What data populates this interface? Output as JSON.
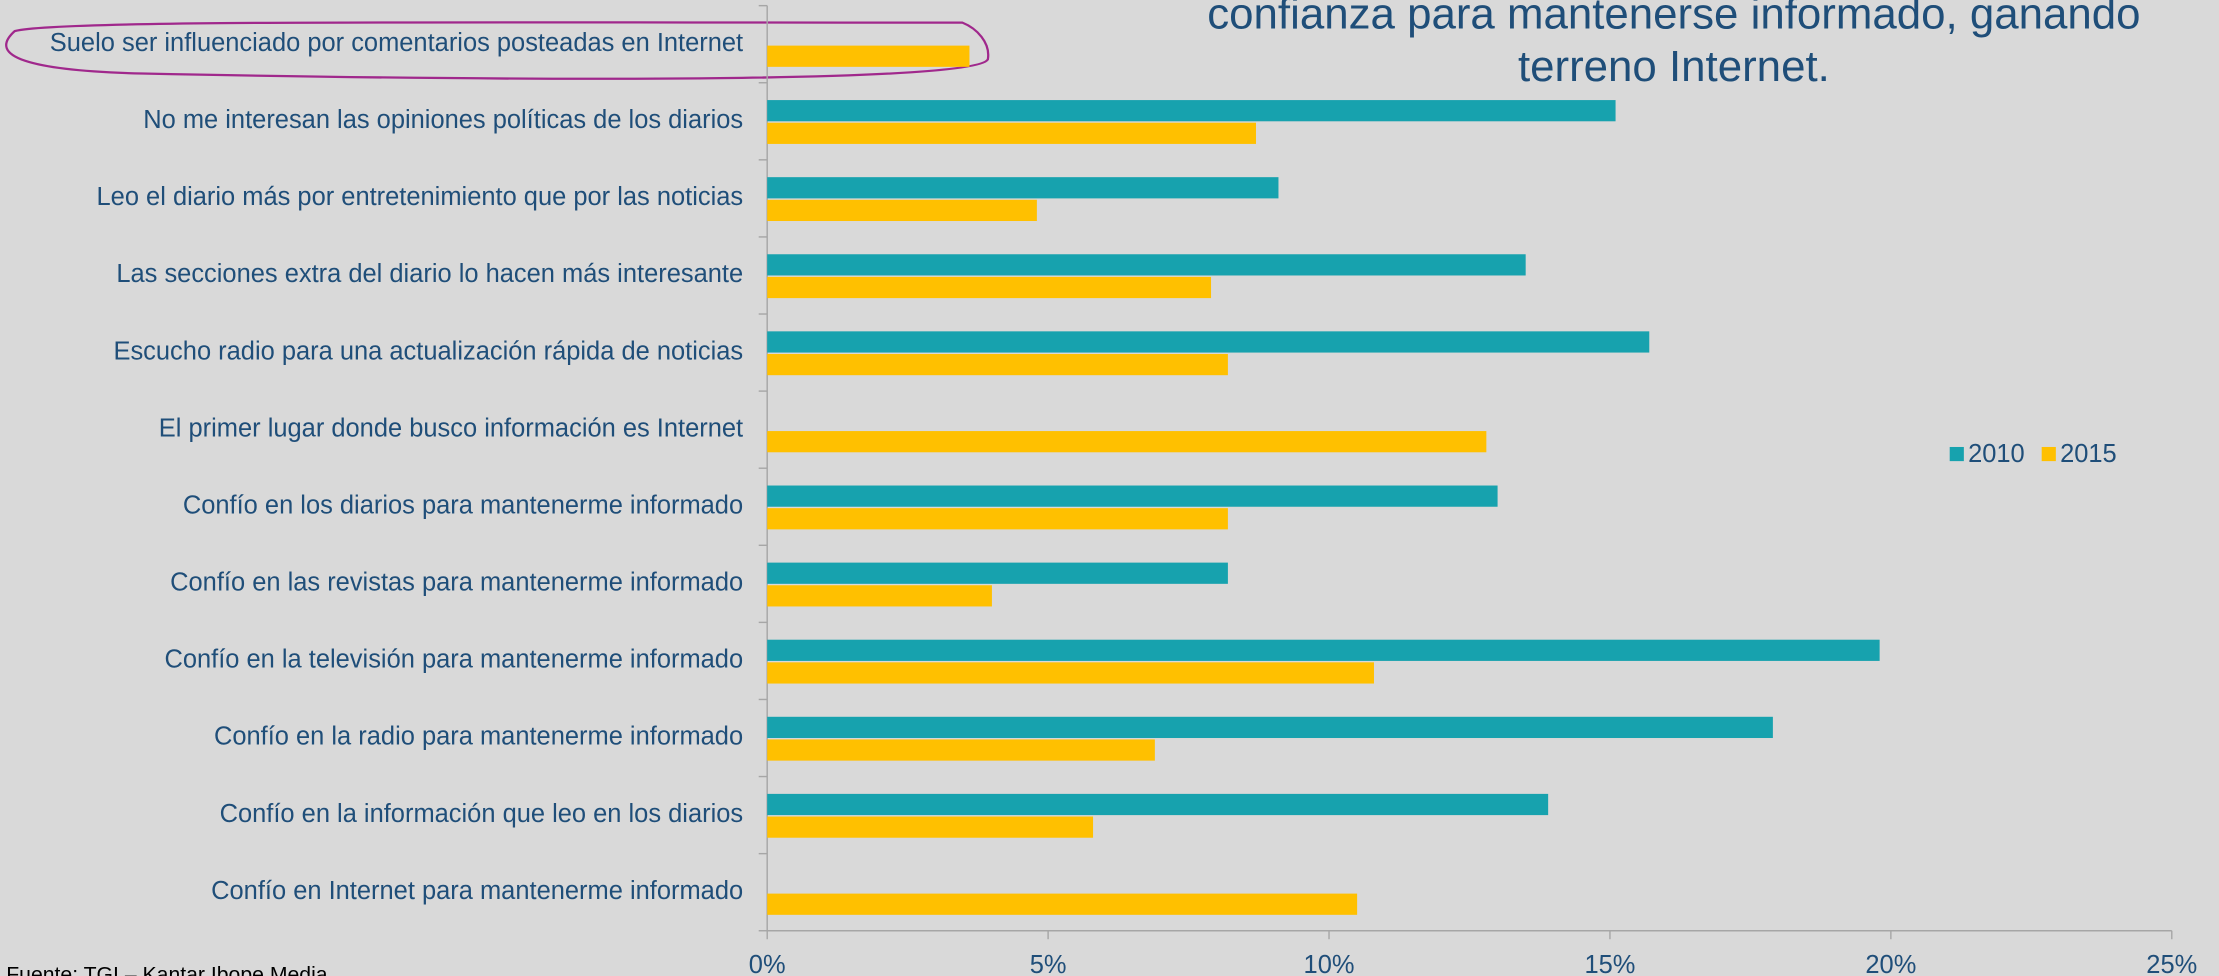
{
  "chart_data": {
    "type": "bar",
    "orientation": "horizontal",
    "title": [
      "confianza para mantenerse informado, ganando",
      "terreno Internet."
    ],
    "source": "Fuente: TGI – Kantar Ibope Media",
    "categories": [
      "Suelo ser influenciado por comentarios posteadas en Internet",
      "No me interesan las opiniones políticas de los diarios",
      "Leo el diario más por entretenimiento que por las noticias",
      "Las secciones extra del diario lo hacen más interesante",
      "Escucho radio para una actualización rápida de noticias",
      "El primer lugar donde busco información es Internet",
      "Confío en los diarios para mantenerme informado",
      "Confío en las revistas para mantenerme informado",
      "Confío en la televisión para mantenerme informado",
      "Confío en la radio para mantenerme informado",
      "Confío en la información que leo en los diarios",
      "Confío en Internet para mantenerme informado"
    ],
    "series": [
      {
        "name": "2010",
        "color": "#17a2ae",
        "values": [
          null,
          15.1,
          9.1,
          13.5,
          15.7,
          null,
          13.0,
          8.2,
          19.8,
          17.9,
          13.9,
          null
        ]
      },
      {
        "name": "2015",
        "color": "#ffc000",
        "values": [
          3.6,
          8.7,
          4.8,
          7.9,
          8.2,
          12.8,
          8.2,
          4.0,
          10.8,
          6.9,
          5.8,
          10.5
        ]
      }
    ],
    "xlim": [
      0,
      25
    ],
    "xticks": [
      {
        "value": 0,
        "label": "0%"
      },
      {
        "value": 5,
        "label": "5%"
      },
      {
        "value": 10,
        "label": "10%"
      },
      {
        "value": 15,
        "label": "15%"
      },
      {
        "value": 20,
        "label": "20%"
      },
      {
        "value": 25,
        "label": "25%"
      }
    ],
    "legend": "right"
  }
}
